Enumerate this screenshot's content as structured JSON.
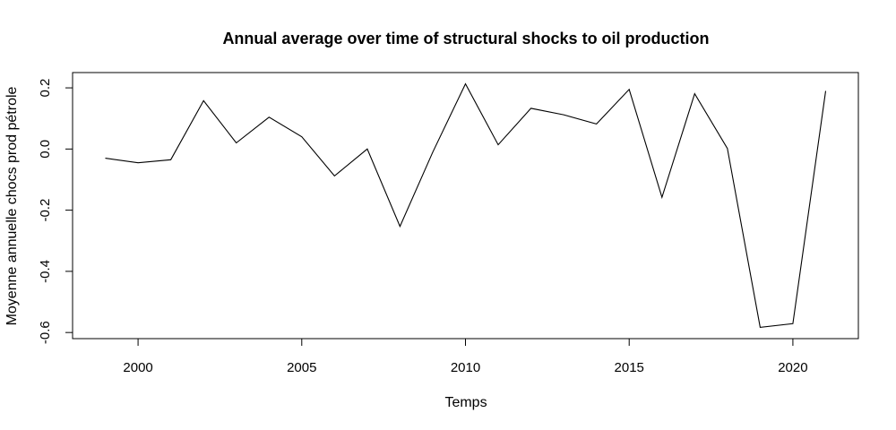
{
  "chart_data": {
    "type": "line",
    "title": "Annual average over time of structural shocks to oil production",
    "xlabel": "Temps",
    "ylabel": "Moyenne annuelle chocs prod pétrole",
    "xlim": [
      1998,
      2022
    ],
    "ylim": [
      -0.62,
      0.25
    ],
    "x_ticks": [
      2000,
      2005,
      2010,
      2015,
      2020
    ],
    "x_tick_labels": [
      "2000",
      "2005",
      "2010",
      "2015",
      "2020"
    ],
    "y_ticks": [
      -0.6,
      -0.4,
      -0.2,
      0.0,
      0.2
    ],
    "y_tick_labels": [
      "-0.6",
      "-0.4",
      "-0.2",
      "0.0",
      "0.2"
    ],
    "grid": false,
    "series": [
      {
        "x": [
          1999,
          2000,
          2001,
          2002,
          2003,
          2004,
          2005,
          2006,
          2007,
          2008,
          2009,
          2010,
          2011,
          2012,
          2013,
          2014,
          2015,
          2016,
          2017,
          2018,
          2019,
          2020,
          2021
        ],
        "values": [
          -0.03,
          -0.045,
          -0.035,
          0.158,
          0.02,
          0.104,
          0.04,
          -0.088,
          0.0,
          -0.253,
          -0.01,
          0.213,
          0.014,
          0.133,
          0.112,
          0.082,
          0.195,
          -0.158,
          0.181,
          0.002,
          -0.583,
          -0.571,
          0.19
        ],
        "color": "#000000"
      }
    ]
  }
}
